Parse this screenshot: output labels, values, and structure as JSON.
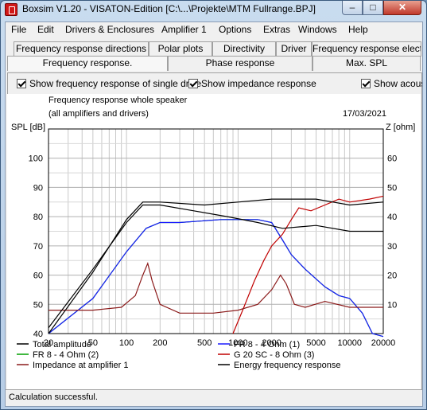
{
  "window": {
    "title": "Boxsim V1.20 - VISATON-Edition [C:\\...\\Projekte\\MTM Fullrange.BPJ]",
    "minimize_glyph": "–",
    "maximize_glyph": "□",
    "close_glyph": "✕"
  },
  "menu": [
    "File",
    "Edit",
    "Drivers & Enclosures",
    "Amplifier 1",
    "Options",
    "Extras",
    "Windows",
    "Help"
  ],
  "tabs_row1": [
    "Frequency response directions",
    "Polar plots",
    "Directivity",
    "Driver",
    "Frequency response electr.."
  ],
  "tabs_row2": [
    "Frequency response.",
    "Phase response",
    "Max. SPL"
  ],
  "active_tab": "Frequency response.",
  "checkboxes": [
    {
      "label": "Show frequency response of single drive",
      "checked": true
    },
    {
      "label": "Show impedance response",
      "checked": true
    },
    {
      "label": "Show acous",
      "checked": true
    }
  ],
  "chart": {
    "title": "Frequency response whole speaker",
    "subtitle": "(all amplifiers and drivers)",
    "date": "17/03/2021",
    "ylabel_left": "SPL [dB]",
    "ylabel_right": "Z [ohm]"
  },
  "chart_data": {
    "type": "line",
    "x_scale": "log",
    "xlim": [
      20,
      20000
    ],
    "x_ticks": [
      "20",
      "50",
      "100",
      "200",
      "500",
      "1000",
      "2000",
      "5000",
      "10000",
      "20000"
    ],
    "y_left_lim": [
      40,
      110
    ],
    "y_left_ticks": [
      "40",
      "50",
      "60",
      "70",
      "80",
      "90",
      "100"
    ],
    "y_right_lim": [
      0,
      70
    ],
    "y_right_ticks": [
      "10",
      "20",
      "30",
      "40",
      "50",
      "60"
    ],
    "grid": true,
    "legend_position": "bottom",
    "series": [
      {
        "name": "Total amplitude",
        "axis": "left",
        "color": "#000000",
        "x": [
          20,
          50,
          100,
          140,
          200,
          400,
          800,
          1500,
          2500,
          5000,
          10000,
          20000
        ],
        "y": [
          42,
          62,
          78,
          84,
          84,
          82,
          80,
          78,
          76,
          77,
          75,
          75
        ]
      },
      {
        "name": "FR 8 - 4 Ohm (1)",
        "axis": "left",
        "color": "#1a1aff",
        "x": [
          20,
          50,
          100,
          150,
          200,
          300,
          700,
          1500,
          2000,
          2500,
          3000,
          4000,
          6000,
          8000,
          10000,
          13000,
          16000,
          20000
        ],
        "y": [
          40,
          52,
          68,
          76,
          78,
          78,
          79,
          79,
          78,
          72,
          67,
          62,
          56,
          53,
          52,
          47,
          40,
          39
        ]
      },
      {
        "name": "FR 8 - 4 Ohm (2)",
        "axis": "left",
        "color": "#00a000",
        "x": [
          20,
          50,
          100,
          150,
          200,
          300,
          700,
          1500,
          2000,
          2500,
          3000,
          4000,
          6000,
          8000,
          10000,
          13000,
          16000,
          20000
        ],
        "y": [
          40,
          52,
          68,
          76,
          78,
          78,
          79,
          79,
          78,
          72,
          67,
          62,
          56,
          53,
          52,
          47,
          40,
          39
        ]
      },
      {
        "name": "G 20 SC - 8 Ohm (3)",
        "axis": "left",
        "color": "#c00000",
        "x": [
          900,
          1100,
          1400,
          1700,
          2000,
          2500,
          3000,
          3500,
          4500,
          6000,
          8000,
          10000,
          15000,
          20000
        ],
        "y": [
          40,
          48,
          58,
          65,
          70,
          74,
          79,
          83,
          82,
          84,
          86,
          85,
          86,
          87
        ]
      },
      {
        "name": "Impedance at amplifier 1",
        "axis": "right",
        "color": "#8b1a1a",
        "x": [
          20,
          50,
          90,
          120,
          140,
          155,
          170,
          200,
          300,
          600,
          1000,
          1500,
          2000,
          2400,
          2700,
          3200,
          4000,
          6000,
          10000,
          20000
        ],
        "y": [
          8,
          8,
          9,
          13,
          20,
          24,
          18,
          10,
          7,
          7,
          8,
          10,
          15,
          20,
          17,
          10,
          9,
          11,
          9,
          9
        ]
      },
      {
        "name": "Energy frequency response",
        "axis": "left",
        "color": "#000000",
        "x": [
          20,
          50,
          100,
          140,
          200,
          500,
          1000,
          2000,
          3000,
          5000,
          10000,
          20000
        ],
        "y": [
          40,
          61,
          79,
          85,
          85,
          84,
          85,
          86,
          86,
          86,
          84,
          85
        ]
      }
    ]
  },
  "status": "Calculation successful."
}
